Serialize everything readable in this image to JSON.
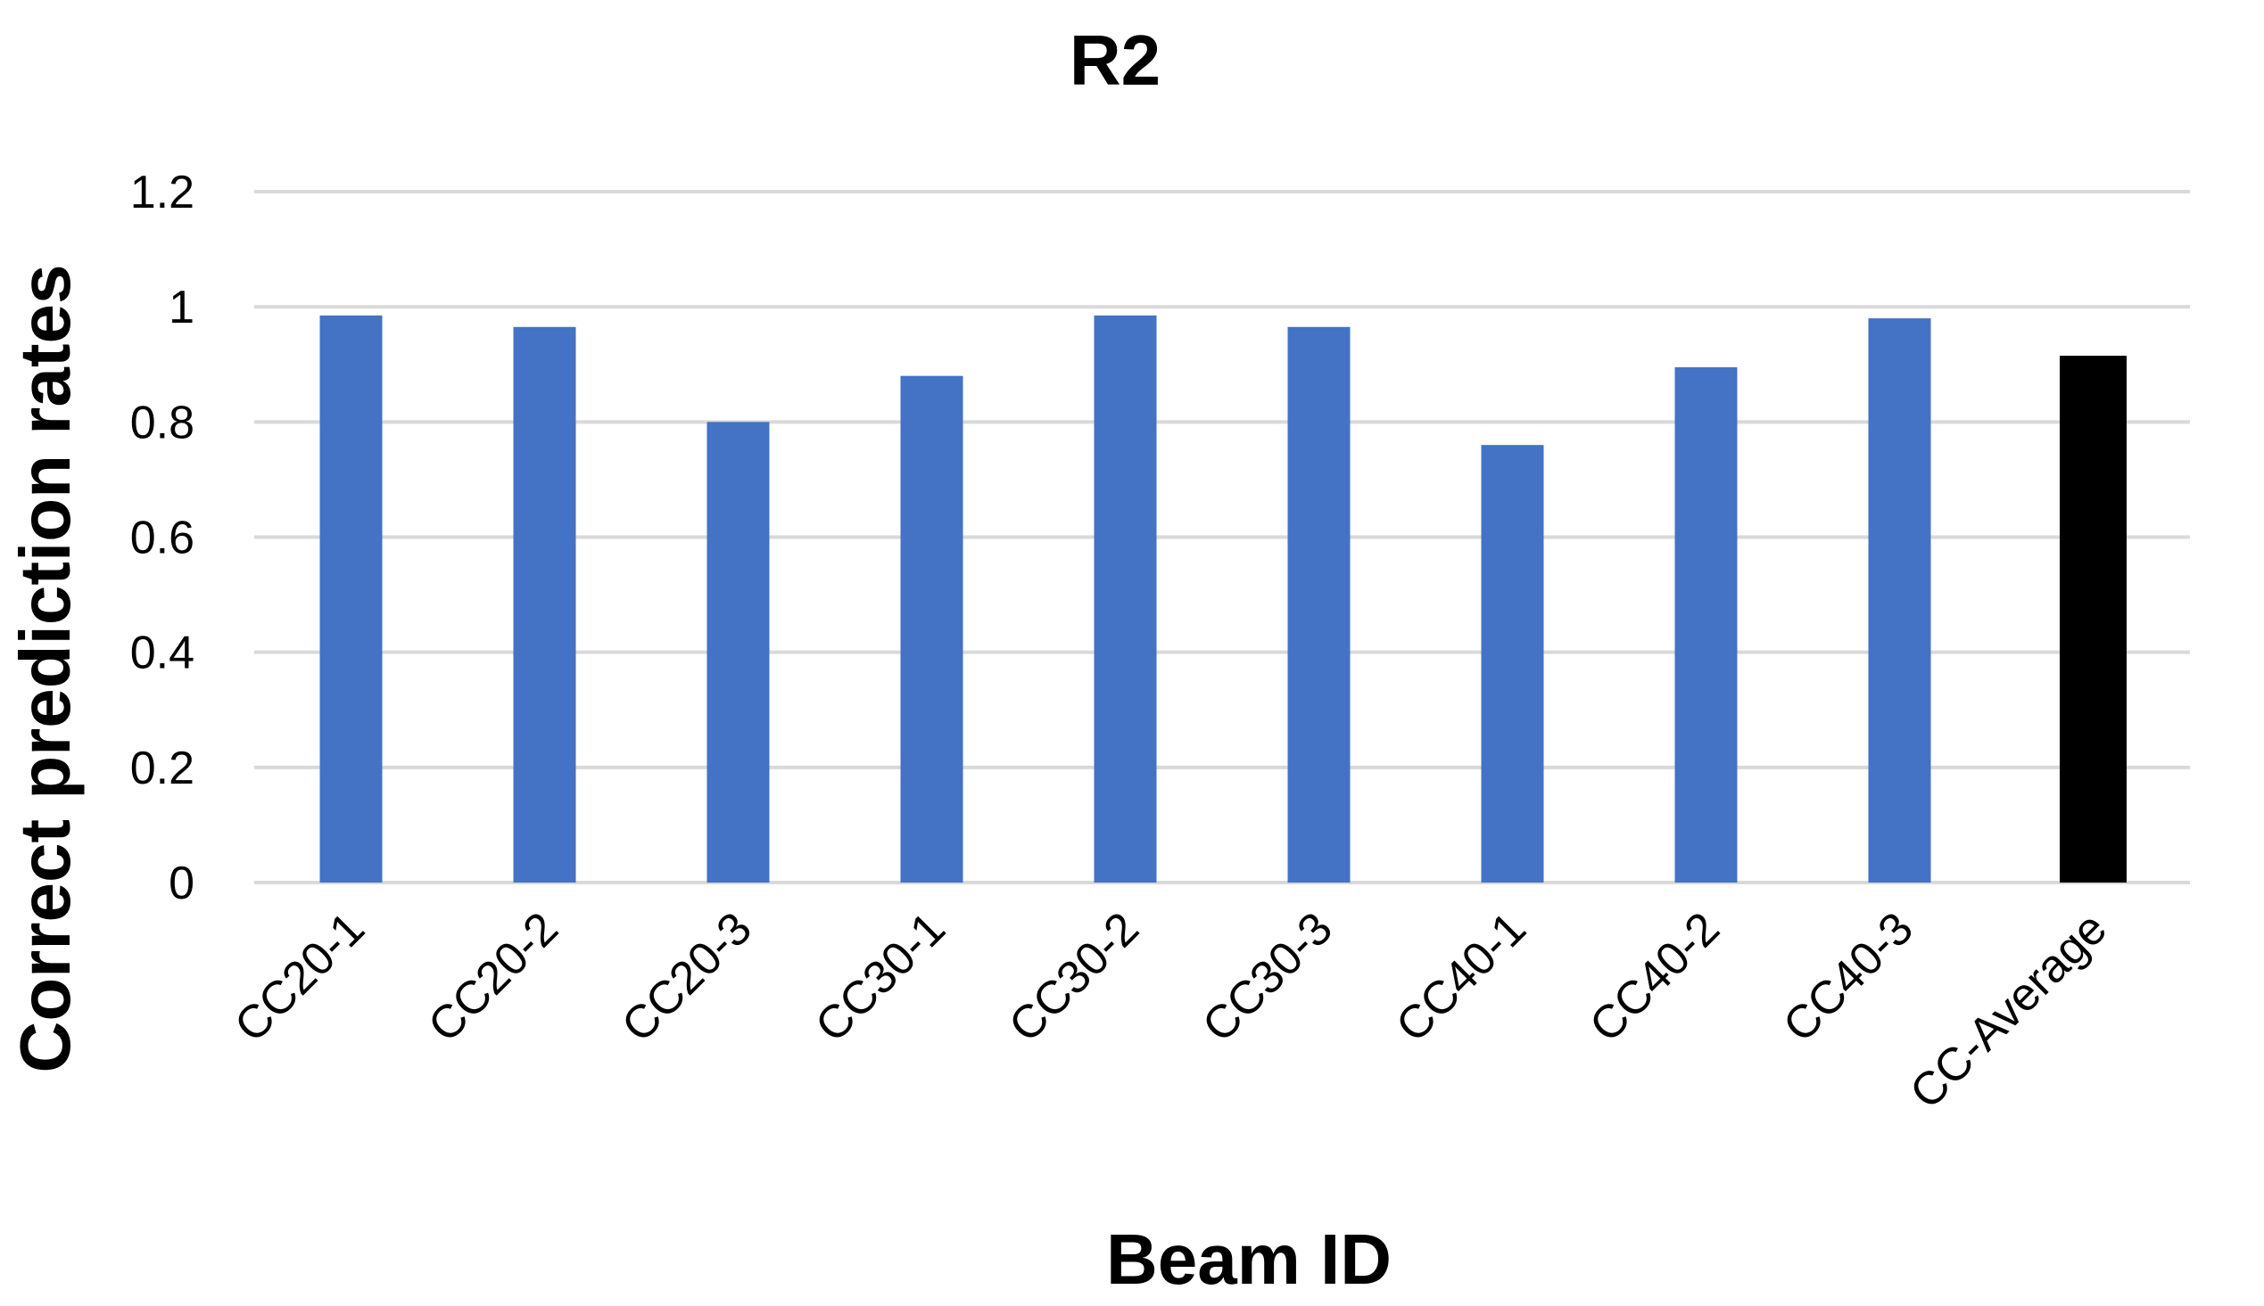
{
  "chart_data": {
    "type": "bar",
    "title": "R2",
    "xlabel": "Beam ID",
    "ylabel": "Correct prediction rates",
    "categories": [
      "CC20-1",
      "CC20-2",
      "CC20-3",
      "CC30-1",
      "CC30-2",
      "CC30-3",
      "CC40-1",
      "CC40-2",
      "CC40-3",
      "CC-Average"
    ],
    "values": [
      0.985,
      0.965,
      0.8,
      0.88,
      0.985,
      0.965,
      0.76,
      0.895,
      0.98,
      0.915
    ],
    "bar_colors": [
      "#4472C4",
      "#4472C4",
      "#4472C4",
      "#4472C4",
      "#4472C4",
      "#4472C4",
      "#4472C4",
      "#4472C4",
      "#4472C4",
      "#000000"
    ],
    "ylim": [
      0,
      1.2
    ],
    "yticks": [
      "0",
      "0.2",
      "0.4",
      "0.6",
      "0.8",
      "1",
      "1.2"
    ],
    "grid": true,
    "legend": "none"
  }
}
